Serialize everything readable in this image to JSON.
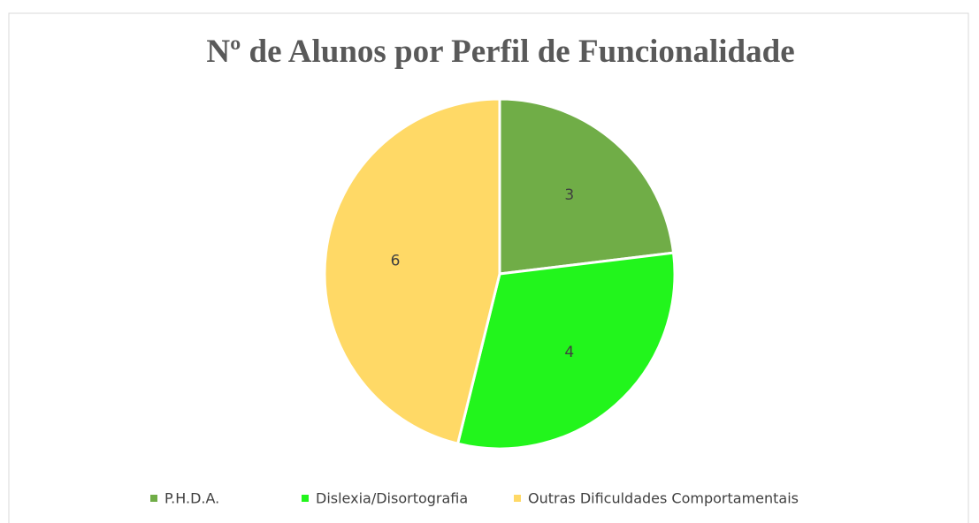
{
  "chart_data": {
    "type": "pie",
    "title": "Nº de Alunos por Perfil de Funcionalidade",
    "categories": [
      "P.H.D.A.",
      "Dislexia/Disortografia",
      "Outras Dificuldades Comportamentais"
    ],
    "values": [
      3,
      4,
      6
    ],
    "colors": [
      "#70ad47",
      "#22f51c",
      "#ffd966"
    ],
    "legend": "bottom"
  }
}
